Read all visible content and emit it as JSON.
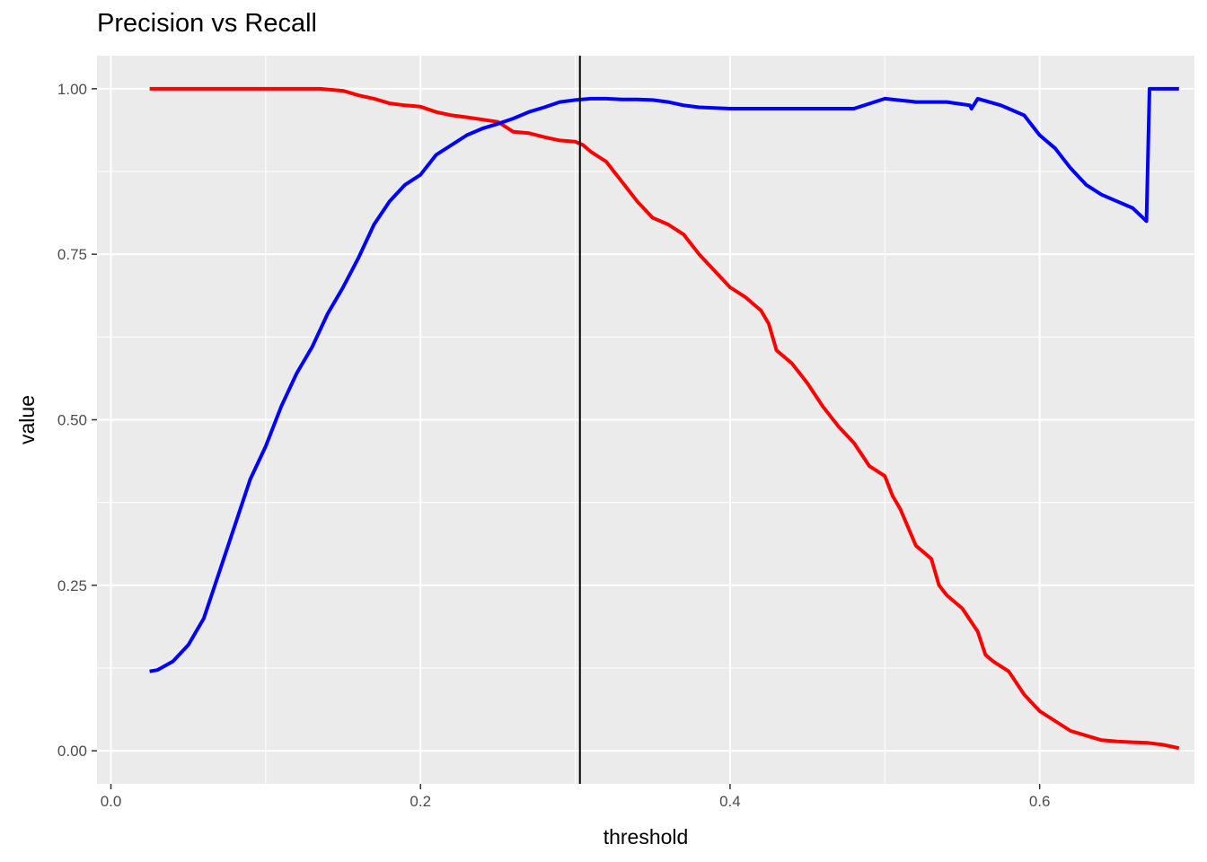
{
  "chart_data": {
    "type": "line",
    "title": "Precision vs Recall",
    "xlabel": "threshold",
    "ylabel": "value",
    "xlim": [
      -0.009,
      0.7
    ],
    "ylim": [
      -0.05,
      1.05
    ],
    "x_ticks": [
      0.0,
      0.2,
      0.4,
      0.6
    ],
    "x_tick_labels": [
      "0.0",
      "0.2",
      "0.4",
      "0.6"
    ],
    "y_ticks": [
      0.0,
      0.25,
      0.5,
      0.75,
      1.0
    ],
    "y_tick_labels": [
      "0.00",
      "0.25",
      "0.50",
      "0.75",
      "1.00"
    ],
    "grid": true,
    "legend": "none",
    "panel_background": "#ebebeb",
    "grid_color": "#ffffff",
    "vline": {
      "x": 0.303,
      "color": "#000000"
    },
    "series": [
      {
        "color": "#ff0000",
        "x": [
          0.025,
          0.05,
          0.1,
          0.135,
          0.15,
          0.16,
          0.17,
          0.18,
          0.19,
          0.2,
          0.21,
          0.22,
          0.23,
          0.25,
          0.26,
          0.27,
          0.28,
          0.29,
          0.3,
          0.305,
          0.31,
          0.32,
          0.33,
          0.34,
          0.35,
          0.36,
          0.37,
          0.38,
          0.39,
          0.4,
          0.41,
          0.42,
          0.425,
          0.43,
          0.44,
          0.45,
          0.46,
          0.47,
          0.48,
          0.49,
          0.5,
          0.505,
          0.51,
          0.52,
          0.53,
          0.535,
          0.54,
          0.55,
          0.56,
          0.565,
          0.57,
          0.58,
          0.59,
          0.6,
          0.61,
          0.62,
          0.63,
          0.64,
          0.65,
          0.66,
          0.67,
          0.68,
          0.69
        ],
        "y": [
          1.0,
          1.0,
          1.0,
          1.0,
          0.997,
          0.99,
          0.985,
          0.978,
          0.975,
          0.973,
          0.965,
          0.96,
          0.957,
          0.95,
          0.935,
          0.933,
          0.927,
          0.922,
          0.92,
          0.915,
          0.905,
          0.89,
          0.86,
          0.83,
          0.805,
          0.795,
          0.78,
          0.75,
          0.725,
          0.7,
          0.685,
          0.665,
          0.645,
          0.605,
          0.585,
          0.555,
          0.52,
          0.49,
          0.465,
          0.43,
          0.415,
          0.385,
          0.365,
          0.31,
          0.29,
          0.25,
          0.235,
          0.215,
          0.18,
          0.145,
          0.135,
          0.12,
          0.085,
          0.06,
          0.045,
          0.03,
          0.023,
          0.016,
          0.014,
          0.013,
          0.012,
          0.009,
          0.004
        ]
      },
      {
        "color": "#0000ff",
        "x": [
          0.025,
          0.03,
          0.04,
          0.05,
          0.06,
          0.07,
          0.08,
          0.09,
          0.1,
          0.11,
          0.12,
          0.13,
          0.14,
          0.15,
          0.16,
          0.17,
          0.18,
          0.19,
          0.2,
          0.21,
          0.22,
          0.23,
          0.24,
          0.25,
          0.26,
          0.27,
          0.28,
          0.29,
          0.3,
          0.31,
          0.32,
          0.33,
          0.34,
          0.35,
          0.36,
          0.37,
          0.38,
          0.4,
          0.45,
          0.48,
          0.5,
          0.52,
          0.54,
          0.555,
          0.556,
          0.56,
          0.575,
          0.58,
          0.59,
          0.6,
          0.61,
          0.62,
          0.63,
          0.64,
          0.65,
          0.66,
          0.669,
          0.671,
          0.68,
          0.69
        ],
        "y": [
          0.12,
          0.122,
          0.135,
          0.16,
          0.2,
          0.27,
          0.34,
          0.41,
          0.46,
          0.52,
          0.57,
          0.61,
          0.66,
          0.7,
          0.745,
          0.795,
          0.83,
          0.855,
          0.87,
          0.9,
          0.915,
          0.93,
          0.94,
          0.947,
          0.955,
          0.965,
          0.972,
          0.98,
          0.983,
          0.985,
          0.985,
          0.984,
          0.984,
          0.983,
          0.98,
          0.975,
          0.972,
          0.97,
          0.97,
          0.97,
          0.985,
          0.98,
          0.98,
          0.975,
          0.97,
          0.985,
          0.975,
          0.97,
          0.96,
          0.93,
          0.91,
          0.88,
          0.855,
          0.84,
          0.83,
          0.82,
          0.8,
          1.0,
          1.0,
          1.0
        ]
      }
    ]
  }
}
